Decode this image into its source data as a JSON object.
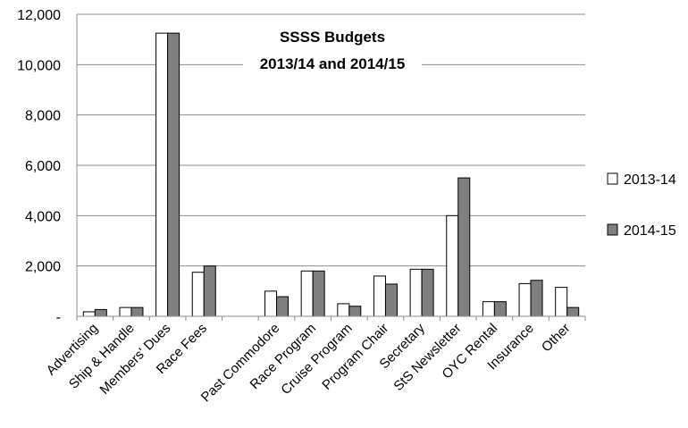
{
  "chart_data": {
    "type": "bar",
    "title": [
      "SSSS Budgets",
      "2013/14 and 2014/15"
    ],
    "xlabel": "",
    "ylabel": "",
    "ylim": [
      0,
      12000
    ],
    "yticks": [
      0,
      2000,
      4000,
      6000,
      8000,
      10000,
      12000
    ],
    "ytick_labels": [
      "-",
      "2,000",
      "4,000",
      "6,000",
      "8,000",
      "10,000",
      "12,000"
    ],
    "grid": "horizontal",
    "legend_position": "right",
    "categories": [
      "Advertising",
      "Ship & Handle",
      "Members' Dues",
      "Race Fees",
      "",
      "Past Commodore",
      "Race Program",
      "Cruise Program",
      "Program Chair",
      "Secretary",
      "StS Newsletter",
      "OYC Rental",
      "Insurance",
      "Other"
    ],
    "series": [
      {
        "name": "2013-14",
        "color": "#ffffff",
        "values": [
          180,
          350,
          11250,
          1750,
          0,
          1000,
          1800,
          500,
          1600,
          1870,
          4000,
          580,
          1300,
          1150
        ]
      },
      {
        "name": "2014-15",
        "color": "#7f7f7f",
        "values": [
          270,
          350,
          11250,
          2000,
          0,
          780,
          1800,
          400,
          1280,
          1870,
          5500,
          580,
          1430,
          350
        ]
      }
    ]
  }
}
